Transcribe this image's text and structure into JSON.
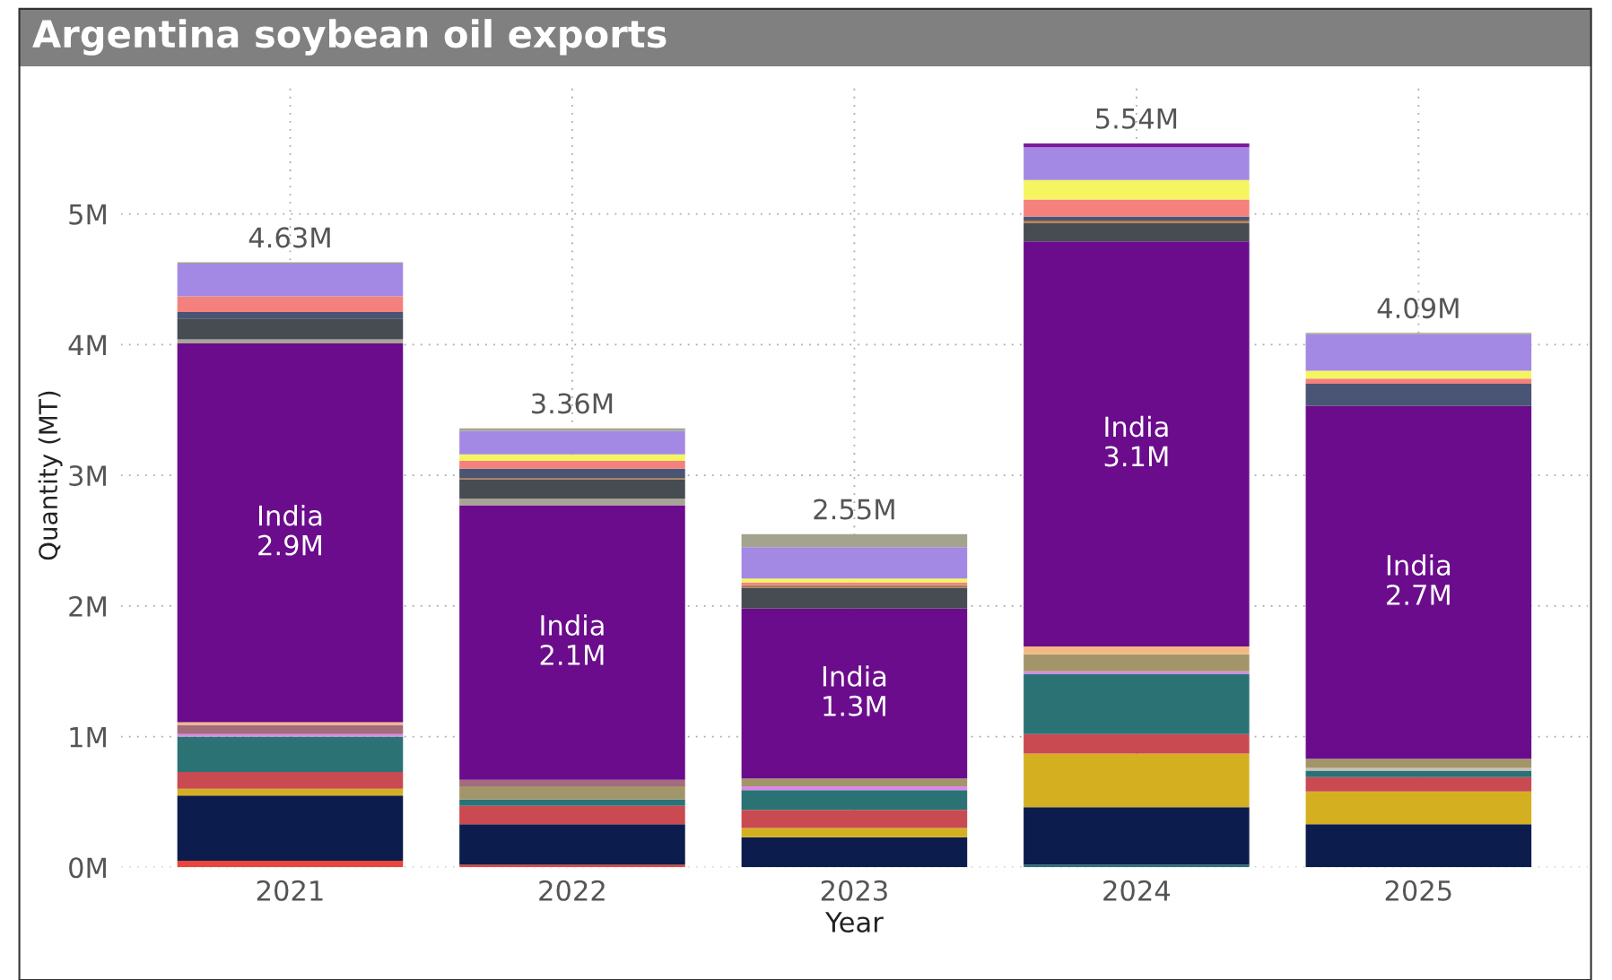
{
  "chart_data": {
    "type": "bar",
    "stacked": true,
    "title": "Argentina soybean oil exports",
    "xlabel": "Year",
    "ylabel": "Quantity (MT)",
    "categories": [
      "2021",
      "2022",
      "2023",
      "2024",
      "2025"
    ],
    "ylim": [
      0,
      6
    ],
    "yticks": [
      {
        "value": 0,
        "label": "0M"
      },
      {
        "value": 1,
        "label": "1M"
      },
      {
        "value": 2,
        "label": "2M"
      },
      {
        "value": 3,
        "label": "3M"
      },
      {
        "value": 4,
        "label": "4M"
      },
      {
        "value": 5,
        "label": "5M"
      }
    ],
    "grid": true,
    "totals": [
      "4.63M",
      "3.36M",
      "2.55M",
      "5.54M",
      "4.09M"
    ],
    "series": [
      {
        "color": "#e8453c",
        "values": [
          0.05,
          0.02,
          0,
          0,
          0
        ]
      },
      {
        "color": "#2b7275",
        "values": [
          0,
          0,
          0,
          0.02,
          0
        ]
      },
      {
        "color": "#0c1c4c",
        "values": [
          0.5,
          0.31,
          0.23,
          0.44,
          0.33
        ]
      },
      {
        "color": "#d4b021",
        "values": [
          0.05,
          0,
          0.07,
          0.41,
          0.25
        ]
      },
      {
        "color": "#c94a50",
        "values": [
          0.13,
          0.14,
          0.14,
          0.15,
          0.11
        ]
      },
      {
        "color": "#2b7275",
        "values": [
          0.27,
          0.05,
          0.15,
          0.46,
          0.05
        ]
      },
      {
        "color": "#d88ae8",
        "values": [
          0.02,
          0,
          0.03,
          0.02,
          0
        ]
      },
      {
        "color": "#c8c0b8",
        "values": [
          0,
          0,
          0,
          0,
          0.02
        ]
      },
      {
        "color": "#a3956a",
        "values": [
          0,
          0.1,
          0.06,
          0.13,
          0.07
        ]
      },
      {
        "color": "#a36b7c",
        "values": [
          0.07,
          0.05,
          0,
          0,
          0
        ]
      },
      {
        "color": "#f2b984",
        "values": [
          0.02,
          0,
          0,
          0.06,
          0
        ]
      },
      {
        "name": "India",
        "color": "#6b0c8c",
        "values": [
          2.9,
          2.1,
          1.3,
          3.1,
          2.7
        ],
        "value_labels": [
          "2.9M",
          "2.1M",
          "1.3M",
          "3.1M",
          "2.7M"
        ]
      },
      {
        "color": "#a8a496",
        "values": [
          0.03,
          0.05,
          0,
          0,
          0
        ]
      },
      {
        "color": "#474b52",
        "values": [
          0.16,
          0.15,
          0.16,
          0.14,
          0
        ]
      },
      {
        "color": "#b07a50",
        "values": [
          0,
          0.01,
          0.02,
          0.02,
          0
        ]
      },
      {
        "color": "#4a5474",
        "values": [
          0.05,
          0.07,
          0,
          0.03,
          0.17
        ]
      },
      {
        "color": "#f4817d",
        "values": [
          0.12,
          0.06,
          0.02,
          0.13,
          0.04
        ]
      },
      {
        "color": "#f4f560",
        "values": [
          0,
          0.05,
          0.03,
          0.15,
          0.06
        ]
      },
      {
        "color": "#a389e4",
        "values": [
          0.25,
          0.18,
          0.24,
          0.25,
          0.28
        ]
      },
      {
        "color": "#a3a38e",
        "values": [
          0.01,
          0.02,
          0.1,
          0,
          0.01
        ]
      },
      {
        "color": "#7a1a9a",
        "values": [
          0,
          0,
          0,
          0.03,
          0
        ]
      }
    ]
  }
}
